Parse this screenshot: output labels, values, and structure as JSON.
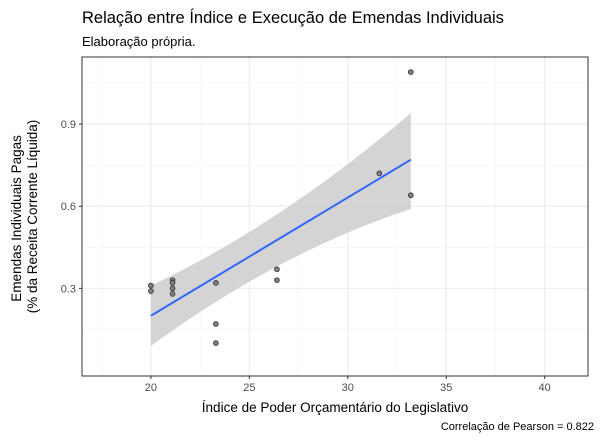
{
  "chart_data": {
    "type": "scatter",
    "title": "Relação entre Índice e Execução de Emendas Individuais",
    "subtitle": "Elaboração própria.",
    "xlabel": "Índice de Poder Orçamentário do Legislativo",
    "ylabel_lines": [
      "Emendas Individuais Pagas",
      "(% da Receita Corrente Líquida)"
    ],
    "caption": "Correlação de Pearson = 0.822",
    "xlim": [
      16.5,
      42.2
    ],
    "ylim": [
      -0.02,
      1.145
    ],
    "x_ticks": [
      20,
      25,
      30,
      35,
      40
    ],
    "y_ticks": [
      0.3,
      0.6,
      0.9
    ],
    "x_tick_labels": [
      "20",
      "25",
      "30",
      "35",
      "40"
    ],
    "y_tick_labels": [
      "0.3",
      "0.6",
      "0.9"
    ],
    "grid": true,
    "points": [
      {
        "x": 20.0,
        "y": 0.31
      },
      {
        "x": 20.0,
        "y": 0.29
      },
      {
        "x": 21.1,
        "y": 0.33
      },
      {
        "x": 21.1,
        "y": 0.32
      },
      {
        "x": 21.1,
        "y": 0.3
      },
      {
        "x": 21.1,
        "y": 0.28
      },
      {
        "x": 23.3,
        "y": 0.32
      },
      {
        "x": 23.3,
        "y": 0.17
      },
      {
        "x": 23.3,
        "y": 0.1
      },
      {
        "x": 26.4,
        "y": 0.37
      },
      {
        "x": 26.4,
        "y": 0.33
      },
      {
        "x": 31.6,
        "y": 0.72
      },
      {
        "x": 33.2,
        "y": 1.09
      },
      {
        "x": 33.2,
        "y": 0.64
      }
    ],
    "fit": {
      "method": "linear",
      "x": [
        20.0,
        33.2
      ],
      "y": [
        0.2,
        0.77
      ],
      "ci_lower": [
        0.09,
        0.59
      ],
      "ci_upper": [
        0.31,
        0.94
      ],
      "line_color": "#3366ff",
      "band_color": "#cccccc"
    },
    "point_fill": "#7f7f7f",
    "point_stroke": "#3c3c3c"
  }
}
